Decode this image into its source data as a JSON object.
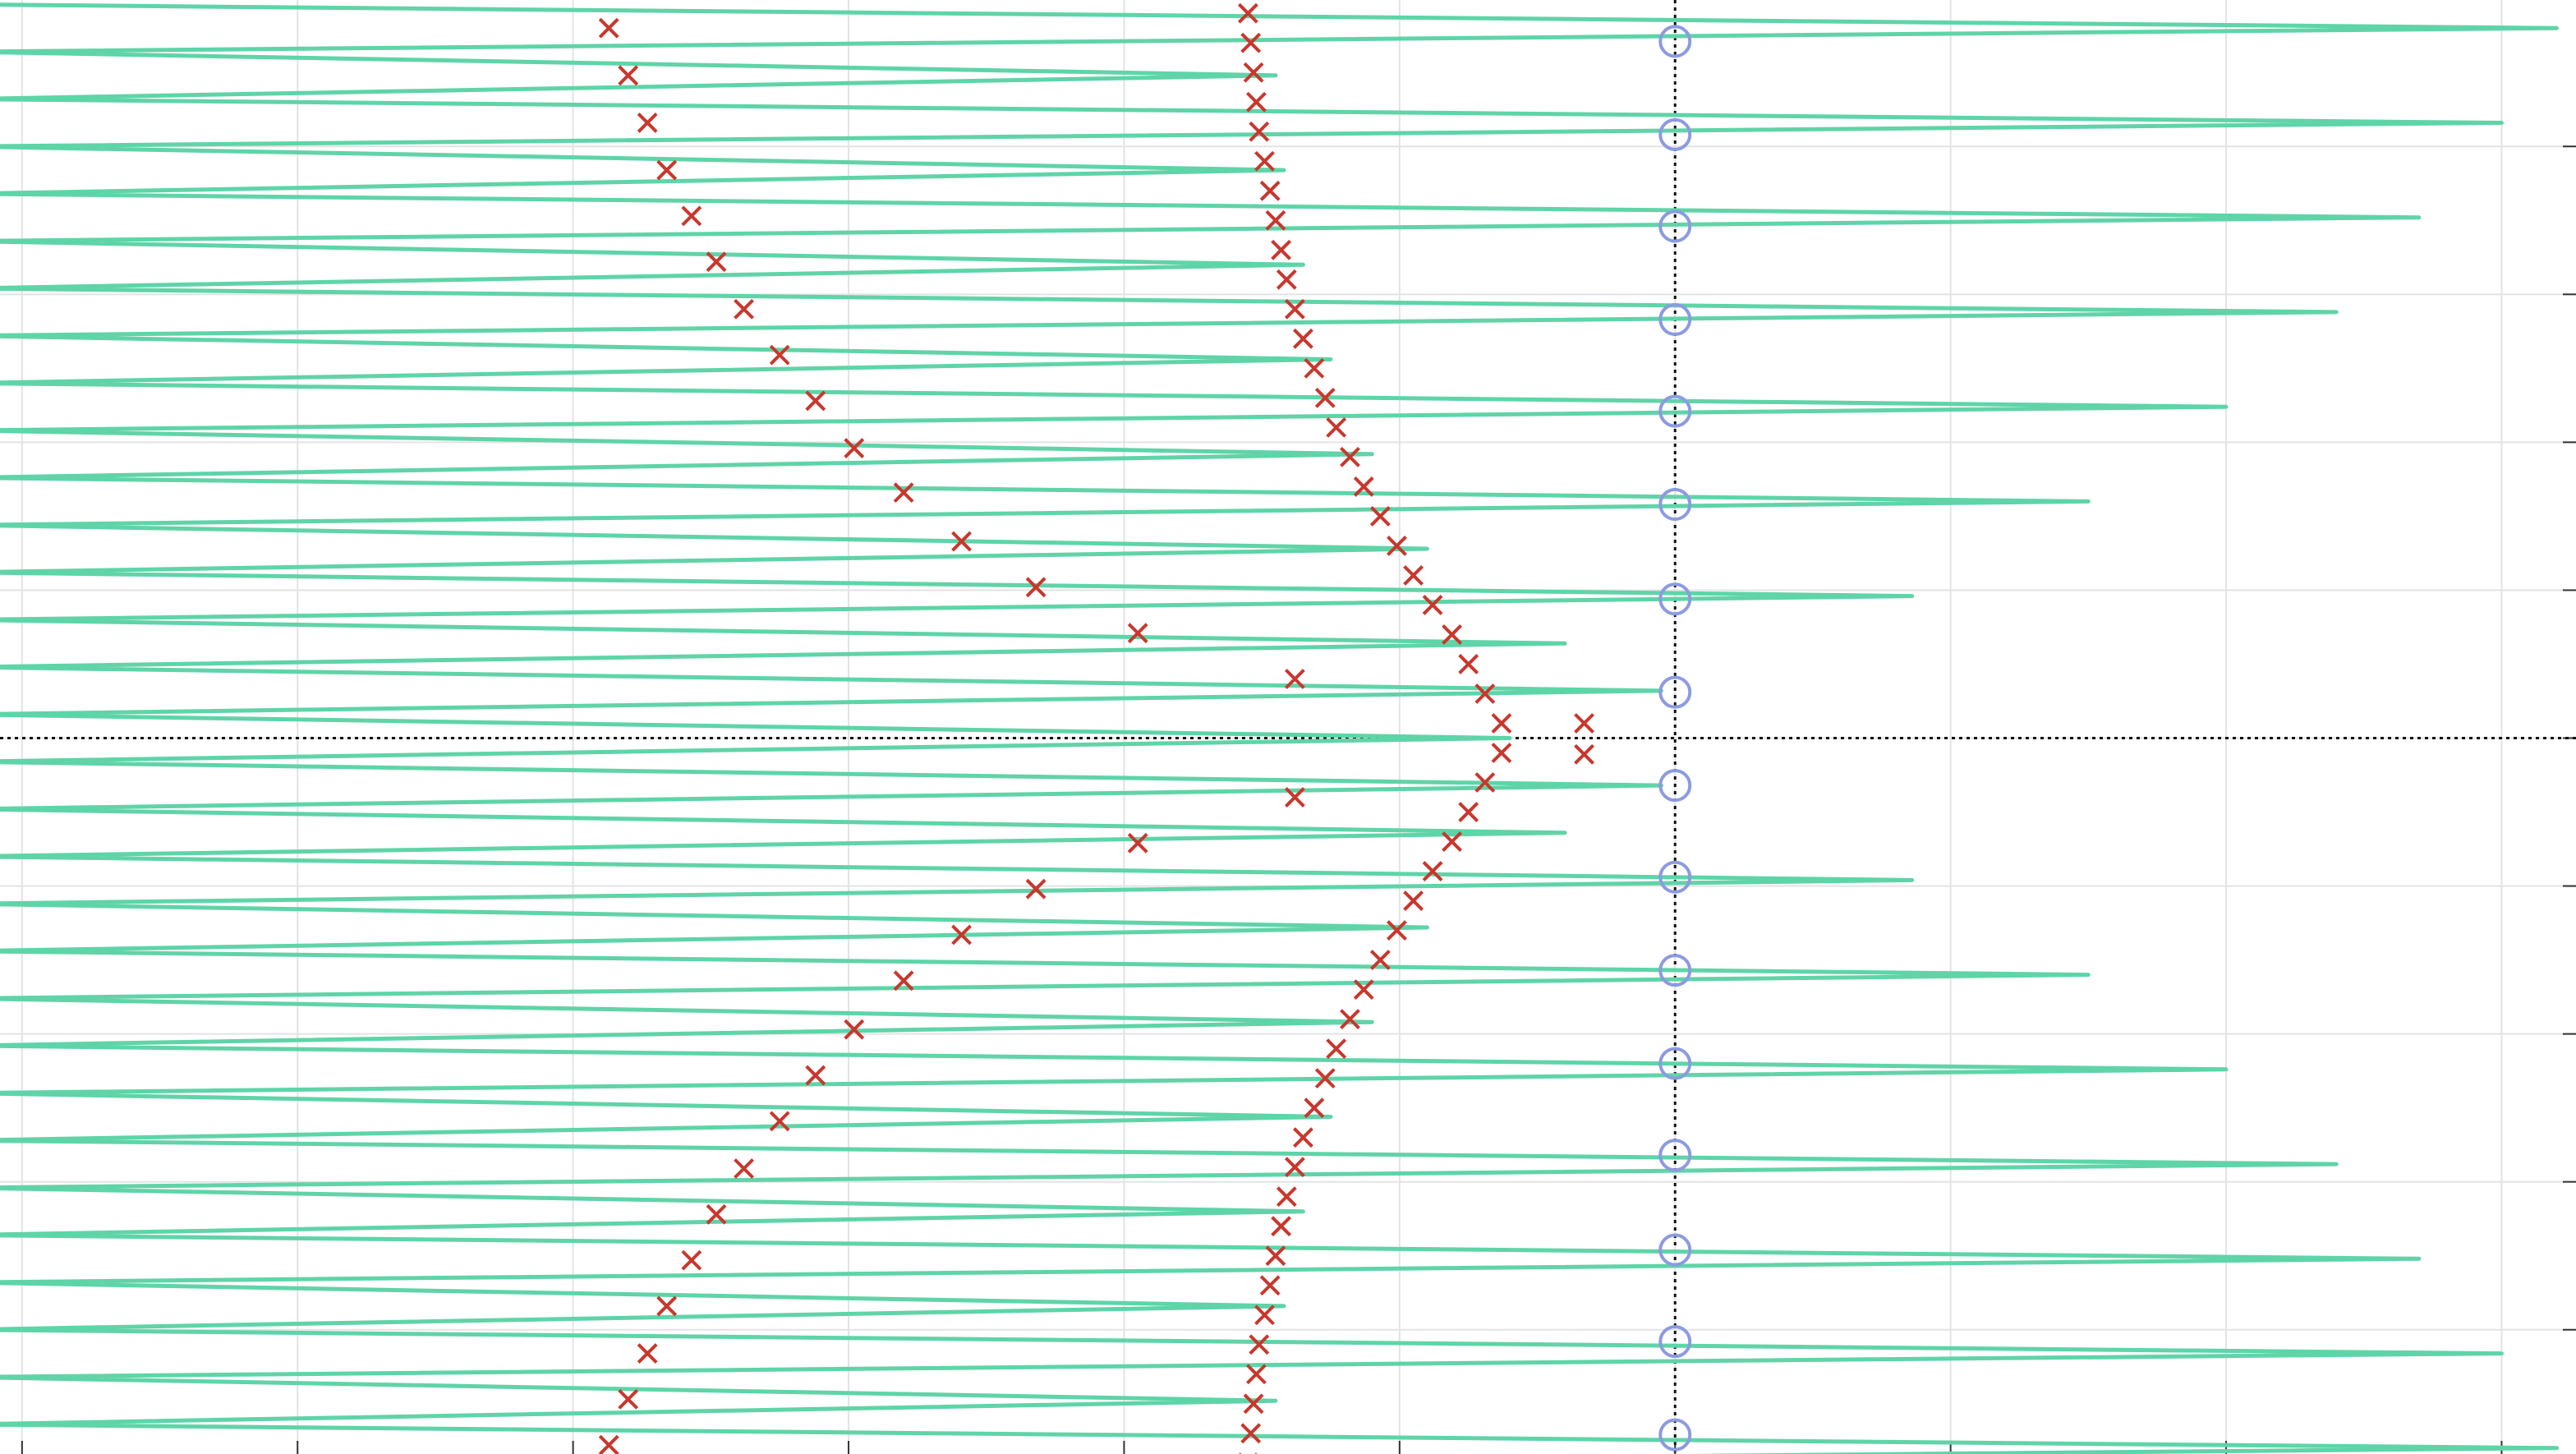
{
  "chart_data": {
    "type": "scatter",
    "xlim": [
      -6.08,
      3.27
    ],
    "ylim": [
      -4.84,
      4.99
    ],
    "xticks": [
      -6,
      -5,
      -4,
      -3,
      -2,
      -1,
      0,
      1,
      2,
      3
    ],
    "yticks": [
      -4,
      -3,
      -2,
      -1,
      0,
      1,
      2,
      3,
      4
    ],
    "grid": true,
    "series": [
      {
        "type": "line",
        "color": "#5fd4a8",
        "x": [
          -6.2,
          3.2,
          -6.2,
          -1.45,
          -6.2,
          3.0,
          -6.2,
          -1.42,
          -6.2,
          2.7,
          -6.2,
          -1.35,
          -6.2,
          2.4,
          -6.2,
          -1.25,
          -6.2,
          2.0,
          -6.2,
          -1.1,
          -6.2,
          1.5,
          -6.2,
          -0.9,
          -6.2,
          0.86,
          -6.2,
          -0.4,
          -6.2,
          -0.05,
          -6.2,
          -0.6,
          -6.2,
          -0.05,
          -6.2,
          -0.4,
          -6.2,
          0.86,
          -6.2,
          -0.9,
          -6.2,
          1.5,
          -6.2,
          -1.1,
          -6.2,
          2.0,
          -6.2,
          -1.25,
          -6.2,
          2.4,
          -6.2,
          -1.35,
          -6.2,
          2.7,
          -6.2,
          -1.42,
          -6.2,
          3.0,
          -6.2,
          -1.45,
          -6.2,
          3.2,
          -6.2
        ],
        "y": [
          4.96,
          4.8,
          4.64,
          4.48,
          4.32,
          4.16,
          4.0,
          3.84,
          3.68,
          3.52,
          3.36,
          3.2,
          3.04,
          2.88,
          2.72,
          2.56,
          2.4,
          2.24,
          2.08,
          1.92,
          1.76,
          1.6,
          1.44,
          1.28,
          1.12,
          0.96,
          0.8,
          0.64,
          0.48,
          0.32,
          0.16,
          0.0,
          -0.16,
          -0.32,
          -0.48,
          -0.64,
          -0.8,
          -0.96,
          -1.12,
          -1.28,
          -1.44,
          -1.6,
          -1.76,
          -1.92,
          -2.08,
          -2.24,
          -2.4,
          -2.56,
          -2.72,
          -2.88,
          -3.04,
          -3.2,
          -3.36,
          -3.52,
          -3.68,
          -3.84,
          -4.0,
          -4.16,
          -4.32,
          -4.48,
          -4.64,
          -4.8,
          -4.96
        ]
      },
      {
        "type": "scatter",
        "marker": "x",
        "color": "#c8372d",
        "x": [
          -3.87,
          -3.8,
          -3.73,
          -3.66,
          -3.57,
          -3.48,
          -3.38,
          -3.25,
          -3.12,
          -2.98,
          -2.8,
          -2.59,
          -2.32,
          -1.95,
          -1.38,
          -0.33,
          -0.33,
          -1.38,
          -1.95,
          -2.32,
          -2.59,
          -2.8,
          -2.98,
          -3.12,
          -3.25,
          -3.38,
          -3.48,
          -3.57,
          -3.66,
          -3.73,
          -3.8,
          -3.87,
          -1.55,
          -1.54,
          -1.53,
          -1.52,
          -1.51,
          -1.49,
          -1.47,
          -1.45,
          -1.43,
          -1.41,
          -1.38,
          -1.35,
          -1.31,
          -1.27,
          -1.23,
          -1.18,
          -1.13,
          -1.07,
          -1.01,
          -0.95,
          -0.88,
          -0.81,
          -0.75,
          -0.69,
          -0.63,
          -0.63,
          -0.69,
          -0.75,
          -0.81,
          -0.88,
          -0.95,
          -1.01,
          -1.07,
          -1.13,
          -1.18,
          -1.23,
          -1.27,
          -1.31,
          -1.35,
          -1.38,
          -1.41,
          -1.43,
          -1.45,
          -1.47,
          -1.49,
          -1.51,
          -1.52,
          -1.53,
          -1.54,
          -1.55
        ],
        "y": [
          4.8,
          4.48,
          4.16,
          3.84,
          3.53,
          3.22,
          2.9,
          2.59,
          2.28,
          1.96,
          1.66,
          1.33,
          1.02,
          0.71,
          0.4,
          0.1,
          -0.11,
          -0.4,
          -0.71,
          -1.02,
          -1.33,
          -1.64,
          -1.97,
          -2.28,
          -2.59,
          -2.91,
          -3.22,
          -3.53,
          -3.84,
          -4.16,
          -4.47,
          -4.78,
          4.9,
          4.7,
          4.5,
          4.3,
          4.1,
          3.9,
          3.7,
          3.5,
          3.3,
          3.1,
          2.9,
          2.7,
          2.5,
          2.3,
          2.1,
          1.9,
          1.7,
          1.5,
          1.3,
          1.1,
          0.9,
          0.7,
          0.5,
          0.3,
          0.1,
          -0.1,
          -0.3,
          -0.5,
          -0.7,
          -0.9,
          -1.1,
          -1.3,
          -1.5,
          -1.7,
          -1.9,
          -2.1,
          -2.3,
          -2.5,
          -2.7,
          -2.9,
          -3.1,
          -3.3,
          -3.5,
          -3.7,
          -3.9,
          -4.1,
          -4.3,
          -4.5,
          -4.7,
          -4.9
        ]
      },
      {
        "type": "scatter",
        "marker": "o",
        "color": "#8c9be0",
        "x": [
          0,
          0,
          0,
          0,
          0,
          0,
          0,
          0,
          0,
          0,
          0,
          0,
          0,
          0,
          0,
          0
        ],
        "y": [
          4.71,
          4.08,
          3.46,
          2.83,
          2.21,
          1.58,
          0.94,
          0.31,
          -0.32,
          -0.94,
          -1.57,
          -2.2,
          -2.82,
          -3.46,
          -4.08,
          -4.71
        ]
      }
    ]
  }
}
